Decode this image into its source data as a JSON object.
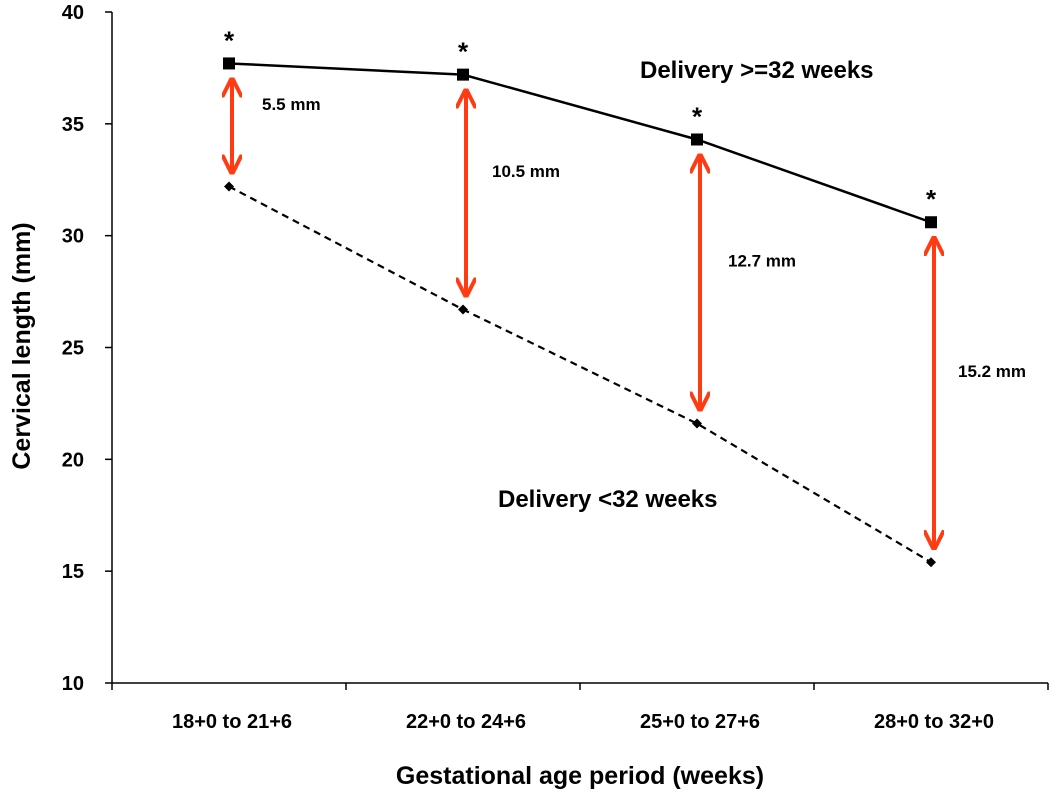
{
  "chart_data": {
    "type": "line",
    "title": "",
    "xlabel": "Gestational age period (weeks)",
    "ylabel": "Cervical length (mm)",
    "ylim": [
      10,
      40
    ],
    "yticks": [
      10,
      15,
      20,
      25,
      30,
      35,
      40
    ],
    "categories": [
      "18+0 to 21+6",
      "22+0 to 24+6",
      "25+0 to 27+6",
      "28+0 to 32+0"
    ],
    "series": [
      {
        "name": "Delivery >=32 weeks",
        "values": [
          37.7,
          37.2,
          34.3,
          30.6
        ],
        "style": "solid",
        "marker": "square",
        "color": "#000000"
      },
      {
        "name": "Delivery <32 weeks",
        "values": [
          32.2,
          26.7,
          21.6,
          15.4
        ],
        "style": "dashed",
        "marker": "diamond",
        "color": "#000000"
      }
    ],
    "significance_marker": "*",
    "differences": [
      {
        "label": "5.5 mm"
      },
      {
        "label": "10.5 mm"
      },
      {
        "label": "12.7 mm"
      },
      {
        "label": "15.2 mm"
      }
    ],
    "arrow_color": "#ff3b14",
    "grid": false,
    "legend": "inline labels"
  }
}
